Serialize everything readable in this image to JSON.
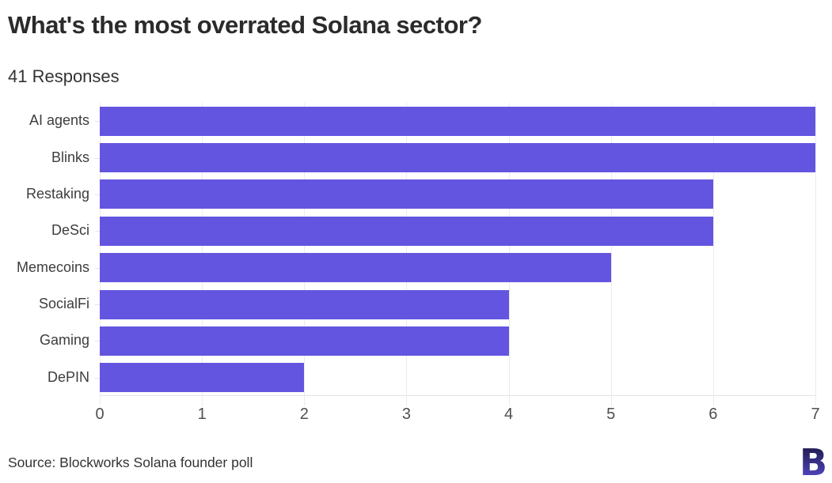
{
  "header": {
    "title": "What's the most overrated Solana sector?",
    "subtitle": "41 Responses"
  },
  "chart_data": {
    "type": "bar",
    "orientation": "horizontal",
    "title": "What's the most overrated Solana sector?",
    "subtitle": "41 Responses",
    "categories": [
      "AI agents",
      "Blinks",
      "Restaking",
      "DeSci",
      "Memecoins",
      "SocialFi",
      "Gaming",
      "DePIN"
    ],
    "values": [
      7,
      7,
      6,
      6,
      5,
      4,
      4,
      2
    ],
    "xlabel": "",
    "ylabel": "",
    "xlim": [
      0,
      7
    ],
    "xticks": [
      0,
      1,
      2,
      3,
      4,
      5,
      6,
      7
    ],
    "grid": true,
    "legend": false
  },
  "footer": {
    "source": "Source: Blockworks Solana founder poll",
    "logo": "blockworks-b-logo"
  },
  "colors": {
    "bar": "#6355e0",
    "title": "#2b2b2b",
    "subtitle": "#333333",
    "category_label": "#3d3d3d",
    "tick_label": "#4f4f4f",
    "gridline": "#ebebef",
    "axis_line": "#e3e3e8",
    "background": "#ffffff",
    "logo_top": "#17113a",
    "logo_bottom": "#5b4fd7"
  }
}
